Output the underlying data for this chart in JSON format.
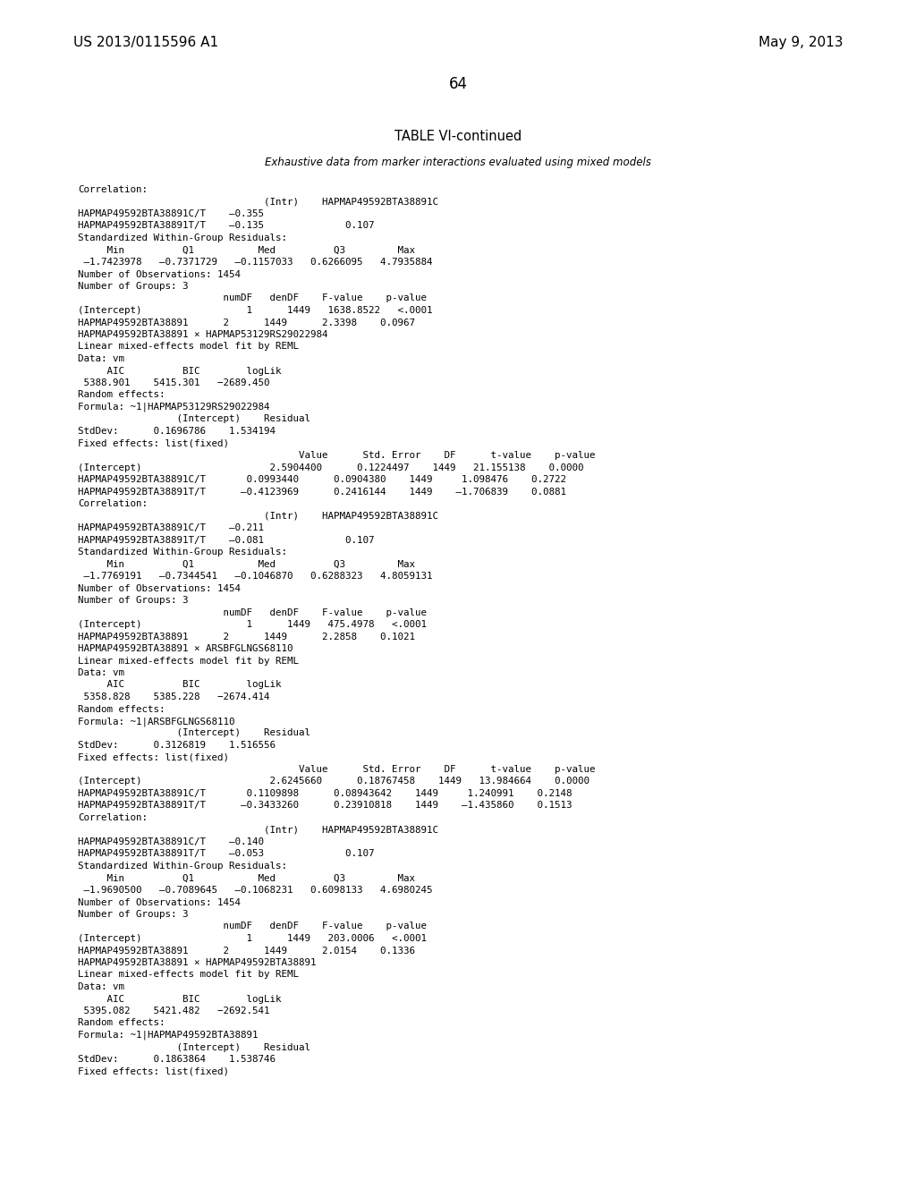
{
  "page_header_left": "US 2013/0115596 A1",
  "page_header_right": "May 9, 2013",
  "page_number": "64",
  "table_title": "TABLE VI-continued",
  "table_subtitle": "Exhaustive data from marker interactions evaluated using mixed models",
  "background_color": "#ffffff",
  "text_color": "#000000",
  "content": [
    "Correlation:",
    "                                (Intr)    HAPMAP49592BTA38891C",
    "HAPMAP49592BTA38891C/T    –0.355",
    "HAPMAP49592BTA38891T/T    –0.135              0.107",
    "Standardized Within-Group Residuals:",
    "     Min          Q1           Med          Q3         Max",
    " –1.7423978   –0.7371729   –0.1157033   0.6266095   4.7935884",
    "Number of Observations: 1454",
    "Number of Groups: 3",
    "                         numDF   denDF    F-value    p-value",
    "(Intercept)                  1      1449   1638.8522   <.0001",
    "HAPMAP49592BTA38891      2      1449      2.3398    0.0967",
    "HAPMAP49592BTA38891 × HAPMAP53129RS29022984",
    "Linear mixed-effects model fit by REML",
    "Data: vm",
    "     AIC          BIC        logLik",
    " 5388.901    5415.301   −2689.450",
    "Random effects:",
    "Formula: ~1|HAPMAP53129RS29022984",
    "                 (Intercept)    Residual",
    "StdDev:      0.1696786    1.534194",
    "Fixed effects: list(fixed)",
    "                                      Value      Std. Error    DF      t-value    p-value",
    "(Intercept)                      2.5904400      0.1224497    1449   21.155138    0.0000",
    "HAPMAP49592BTA38891C/T       0.0993440      0.0904380    1449     1.098476    0.2722",
    "HAPMAP49592BTA38891T/T      –0.4123969      0.2416144    1449    –1.706839    0.0881",
    "Correlation:",
    "                                (Intr)    HAPMAP49592BTA38891C",
    "HAPMAP49592BTA38891C/T    –0.211",
    "HAPMAP49592BTA38891T/T    –0.081              0.107",
    "Standardized Within-Group Residuals:",
    "     Min          Q1           Med          Q3         Max",
    " –1.7769191   –0.7344541   –0.1046870   0.6288323   4.8059131",
    "Number of Observations: 1454",
    "Number of Groups: 3",
    "                         numDF   denDF    F-value    p-value",
    "(Intercept)                  1      1449   475.4978   <.0001",
    "HAPMAP49592BTA38891      2      1449      2.2858    0.1021",
    "HAPMAP49592BTA38891 × ARSBFGLNGS68110",
    "Linear mixed-effects model fit by REML",
    "Data: vm",
    "     AIC          BIC        logLik",
    " 5358.828    5385.228   −2674.414",
    "Random effects:",
    "Formula: ~1|ARSBFGLNGS68110",
    "                 (Intercept)    Residual",
    "StdDev:      0.3126819    1.516556",
    "Fixed effects: list(fixed)",
    "                                      Value      Std. Error    DF      t-value    p-value",
    "(Intercept)                      2.6245660      0.18767458    1449   13.984664    0.0000",
    "HAPMAP49592BTA38891C/T       0.1109898      0.08943642    1449     1.240991    0.2148",
    "HAPMAP49592BTA38891T/T      –0.3433260      0.23910818    1449    –1.435860    0.1513",
    "Correlation:",
    "                                (Intr)    HAPMAP49592BTA38891C",
    "HAPMAP49592BTA38891C/T    –0.140",
    "HAPMAP49592BTA38891T/T    –0.053              0.107",
    "Standardized Within-Group Residuals:",
    "     Min          Q1           Med          Q3         Max",
    " –1.9690500   –0.7089645   –0.1068231   0.6098133   4.6980245",
    "Number of Observations: 1454",
    "Number of Groups: 3",
    "                         numDF   denDF    F-value    p-value",
    "(Intercept)                  1      1449   203.0006   <.0001",
    "HAPMAP49592BTA38891      2      1449      2.0154    0.1336",
    "HAPMAP49592BTA38891 × HAPMAP49592BTA38891",
    "Linear mixed-effects model fit by REML",
    "Data: vm",
    "     AIC          BIC        logLik",
    " 5395.082    5421.482   −2692.541",
    "Random effects:",
    "Formula: ~1|HAPMAP49592BTA38891",
    "                 (Intercept)    Residual",
    "StdDev:      0.1863864    1.538746",
    "Fixed effects: list(fixed)"
  ]
}
